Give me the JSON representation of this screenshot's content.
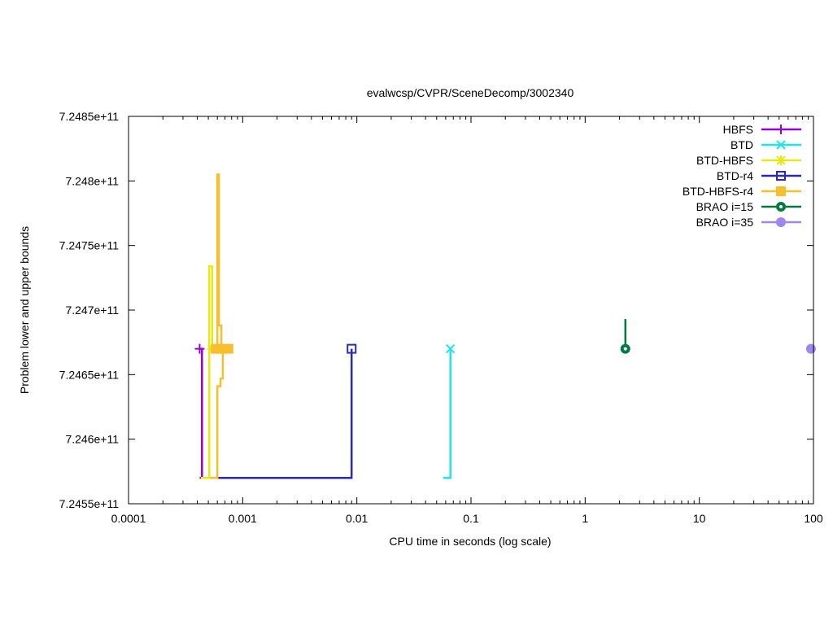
{
  "chart_data": {
    "type": "line",
    "title": "evalwcsp/CVPR/SceneDecomp/3002340",
    "xlabel": "CPU time in seconds (log scale)",
    "ylabel": "Problem lower and upper bounds",
    "x_scale": "log",
    "xlim": [
      0.0001,
      100
    ],
    "ylim": [
      724550000000,
      724850000000
    ],
    "x_ticks": [
      {
        "value": 0.0001,
        "label": "0.0001"
      },
      {
        "value": 0.001,
        "label": "0.001"
      },
      {
        "value": 0.01,
        "label": "0.01"
      },
      {
        "value": 0.1,
        "label": "0.1"
      },
      {
        "value": 1,
        "label": "1"
      },
      {
        "value": 10,
        "label": "10"
      },
      {
        "value": 100,
        "label": "100"
      }
    ],
    "y_ticks": [
      {
        "value": 724550000000,
        "label": "7.2455e+11"
      },
      {
        "value": 724600000000,
        "label": "7.246e+11"
      },
      {
        "value": 724650000000,
        "label": "7.2465e+11"
      },
      {
        "value": 724700000000,
        "label": "7.247e+11"
      },
      {
        "value": 724750000000,
        "label": "7.2475e+11"
      },
      {
        "value": 724800000000,
        "label": "7.248e+11"
      },
      {
        "value": 724850000000,
        "label": "7.2485e+11"
      }
    ],
    "legend_position": "top-right",
    "grid": false,
    "series": [
      {
        "name": "HBFS",
        "color": "#9400d3",
        "marker": "plus",
        "segments": [
          [
            [
              0.00042,
              724670000000
            ],
            [
              0.00044,
              724670000000
            ],
            [
              0.00044,
              724570000000
            ],
            [
              0.00042,
              724570000000
            ]
          ]
        ],
        "markers": [
          [
            0.00042,
            724670000000
          ]
        ]
      },
      {
        "name": "BTD",
        "color": "#1ee6e6",
        "marker": "x",
        "segments": [
          [
            [
              0.057,
              724570000000
            ],
            [
              0.066,
              724570000000
            ],
            [
              0.066,
              724670000000
            ]
          ]
        ],
        "markers": [
          [
            0.066,
            724670000000
          ]
        ]
      },
      {
        "name": "BTD-HBFS",
        "color": "#e8e816",
        "marker": "star",
        "segments": [
          [
            [
              0.00043,
              724570000000
            ],
            [
              0.00051,
              724570000000
            ],
            [
              0.00051,
              724734000000
            ],
            [
              0.00054,
              724734000000
            ],
            [
              0.00054,
              724670000000
            ]
          ]
        ],
        "markers": [
          [
            0.00054,
            724670000000
          ]
        ]
      },
      {
        "name": "BTD-r4",
        "color": "#2a2ab4",
        "marker": "open-square",
        "segments": [
          [
            [
              0.00055,
              724570000000
            ],
            [
              0.009,
              724570000000
            ],
            [
              0.009,
              724670000000
            ]
          ]
        ],
        "markers": [
          [
            0.009,
            724670000000
          ]
        ]
      },
      {
        "name": "BTD-HBFS-r4",
        "color": "#f7be2d",
        "marker": "filled-square",
        "segments": [
          [
            [
              0.00052,
              724570000000
            ],
            [
              0.0006,
              724570000000
            ],
            [
              0.0006,
              724641000000
            ],
            [
              0.00064,
              724641000000
            ],
            [
              0.00064,
              724647000000
            ],
            [
              0.00067,
              724647000000
            ],
            [
              0.00067,
              724670000000
            ]
          ],
          [
            [
              0.0006,
              724670000000
            ],
            [
              0.0006,
              724805000000
            ],
            [
              0.00062,
              724805000000
            ],
            [
              0.00062,
              724688000000
            ],
            [
              0.00065,
              724688000000
            ],
            [
              0.00065,
              724670000000
            ]
          ]
        ],
        "markers": [
          [
            0.00058,
            724670000000
          ],
          [
            0.00066,
            724670000000
          ],
          [
            0.00075,
            724670000000
          ]
        ]
      },
      {
        "name": "BRAO i=15",
        "color": "#007a40",
        "marker": "open-circle",
        "segments": [
          [
            [
              2.25,
              724670000000
            ],
            [
              2.25,
              724693000000
            ]
          ]
        ],
        "markers": [
          [
            2.25,
            724670000000
          ]
        ]
      },
      {
        "name": "BRAO i=35",
        "color": "#9f86f0",
        "marker": "filled-circle",
        "segments": [],
        "markers": [
          [
            95,
            724670000000
          ]
        ]
      }
    ]
  }
}
